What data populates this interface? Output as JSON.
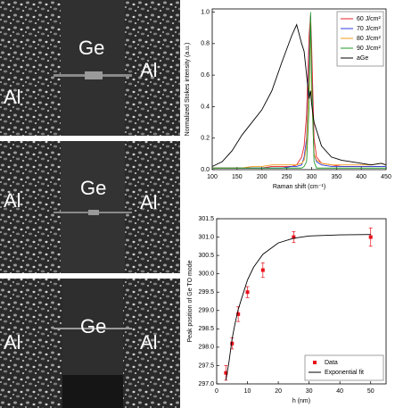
{
  "panels": [
    {
      "left": "Al",
      "center": "Ge",
      "right": "Al"
    },
    {
      "left": "Al",
      "center": "Ge",
      "right": "Al"
    },
    {
      "left": "Al",
      "center": "Ge",
      "right": "Al"
    }
  ],
  "chart_data": [
    {
      "type": "line",
      "x_label": "Raman shift (cm⁻¹)",
      "y_label": "Normalized Stokes intensity (a.u.)",
      "x": [
        100,
        120,
        140,
        160,
        180,
        200,
        220,
        240,
        260,
        270,
        280,
        285,
        290,
        295,
        298,
        300,
        305,
        310,
        320,
        340,
        360,
        380,
        400,
        420,
        440,
        450
      ],
      "series": [
        {
          "name": "60 J/cm²",
          "color": "#e8232a",
          "values": [
            0.01,
            0.01,
            0.01,
            0.01,
            0.01,
            0.01,
            0.02,
            0.02,
            0.02,
            0.03,
            0.08,
            0.15,
            0.35,
            0.85,
            0.98,
            0.8,
            0.2,
            0.08,
            0.04,
            0.03,
            0.02,
            0.02,
            0.02,
            0.02,
            0.02,
            0.02
          ]
        },
        {
          "name": "70 J/cm²",
          "color": "#2f3ee0",
          "values": [
            0.01,
            0.01,
            0.01,
            0.01,
            0.01,
            0.01,
            0.01,
            0.01,
            0.02,
            0.02,
            0.03,
            0.08,
            0.2,
            0.7,
            0.97,
            0.6,
            0.1,
            0.05,
            0.03,
            0.02,
            0.02,
            0.02,
            0.02,
            0.02,
            0.02,
            0.02
          ]
        },
        {
          "name": "80 J/cm²",
          "color": "#f39a1e",
          "values": [
            0.01,
            0.01,
            0.01,
            0.01,
            0.02,
            0.02,
            0.03,
            0.03,
            0.03,
            0.03,
            0.04,
            0.06,
            0.15,
            0.6,
            0.95,
            0.5,
            0.1,
            0.06,
            0.04,
            0.03,
            0.03,
            0.03,
            0.03,
            0.03,
            0.04,
            0.03
          ]
        },
        {
          "name": "90 J/cm²",
          "color": "#1f9a2a",
          "values": [
            0.01,
            0.01,
            0.01,
            0.01,
            0.01,
            0.01,
            0.01,
            0.01,
            0.01,
            0.01,
            0.01,
            0.02,
            0.05,
            0.4,
            1.0,
            0.6,
            0.05,
            0.01,
            0.01,
            0.01,
            0.01,
            0.01,
            0.01,
            0.01,
            0.01,
            0.01
          ]
        },
        {
          "name": "aGe",
          "color": "#000000",
          "values": [
            0.02,
            0.05,
            0.12,
            0.22,
            0.3,
            0.38,
            0.5,
            0.68,
            0.85,
            0.92,
            0.8,
            0.75,
            0.6,
            0.45,
            0.5,
            0.42,
            0.3,
            0.25,
            0.15,
            0.08,
            0.06,
            0.05,
            0.04,
            0.03,
            0.04,
            0.03
          ]
        }
      ],
      "xlim": [
        100,
        450
      ],
      "xticks": [
        100,
        150,
        200,
        250,
        300,
        350,
        400,
        450
      ],
      "ylim": [
        0,
        1.02
      ],
      "yticks": [
        {
          "value": 0,
          "label": "0.0"
        },
        0.2,
        0.4,
        0.6,
        0.8,
        {
          "value": 1,
          "label": "1.0"
        }
      ],
      "legend": "upper right"
    },
    {
      "type": "scatter",
      "x_label": "h (nm)",
      "y_label": "Peak position of Ge TO mode",
      "series": [
        {
          "name": "Data",
          "color": "#e8101a",
          "style": "points",
          "x": [
            3,
            5,
            7,
            10,
            15,
            25,
            50
          ],
          "values": [
            297.3,
            298.1,
            298.9,
            299.5,
            300.1,
            301.0,
            301.0
          ],
          "errors": [
            0.2,
            0.15,
            0.2,
            0.15,
            0.2,
            0.15,
            0.25
          ]
        },
        {
          "name": "Exponential fit",
          "color": "#000000",
          "style": "line",
          "x": [
            3,
            4,
            5,
            6,
            7,
            8,
            10,
            12,
            15,
            20,
            25,
            30,
            40,
            50
          ],
          "values": [
            297.1,
            297.6,
            298.22,
            298.66,
            299.03,
            299.3,
            299.83,
            300.18,
            300.53,
            300.84,
            300.97,
            301.03,
            301.06,
            301.07
          ]
        }
      ],
      "xlim": [
        0,
        55
      ],
      "xticks": [
        0,
        10,
        20,
        30,
        40,
        50
      ],
      "ylim": [
        297,
        301.5
      ],
      "yticks": [
        {
          "value": 297,
          "label": "297.0"
        },
        297.5,
        {
          "value": 298,
          "label": "298.0"
        },
        298.5,
        {
          "value": 299,
          "label": "299.0"
        },
        299.5,
        {
          "value": 300,
          "label": "300.0"
        },
        300.5,
        {
          "value": 301,
          "label": "301.0"
        },
        301.5
      ],
      "legend": "lower right"
    }
  ]
}
